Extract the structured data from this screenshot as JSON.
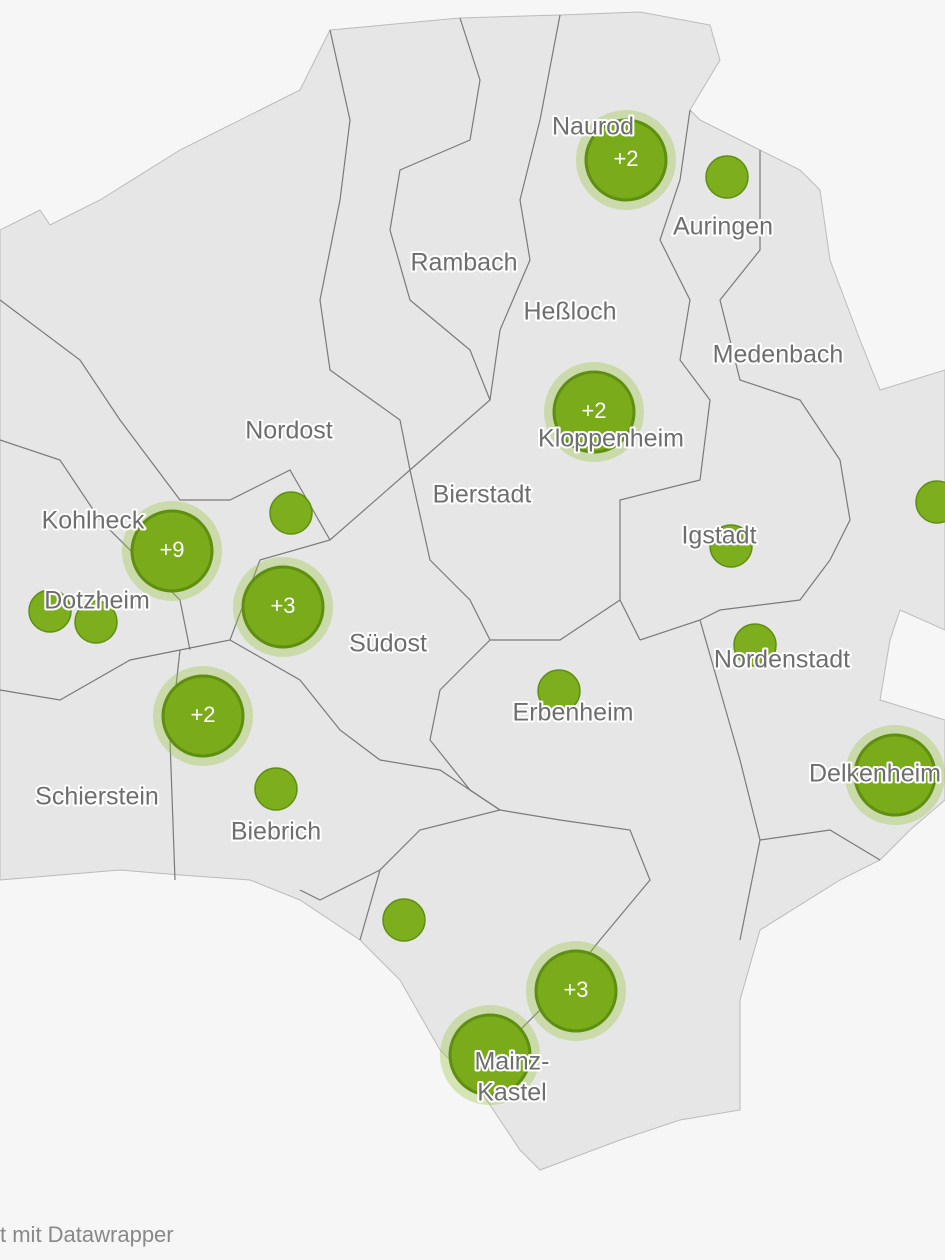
{
  "map": {
    "labels": [
      "Naurod",
      "Auringen",
      "Rambach",
      "Heßloch",
      "Medenbach",
      "Nordost",
      "Kloppenheim",
      "Bierstadt",
      "Kohlheck",
      "Igstadt",
      "Dotzheim",
      "Südost",
      "Nordenstadt",
      "Erbenheim",
      "Delkenheim",
      "Schierstein",
      "Biebrich",
      "Mainz-",
      "Kastel"
    ],
    "clusters": [
      "+2",
      "+2",
      "+9",
      "+3",
      "+2",
      "+3"
    ],
    "footer": "t mit Datawrapper"
  }
}
